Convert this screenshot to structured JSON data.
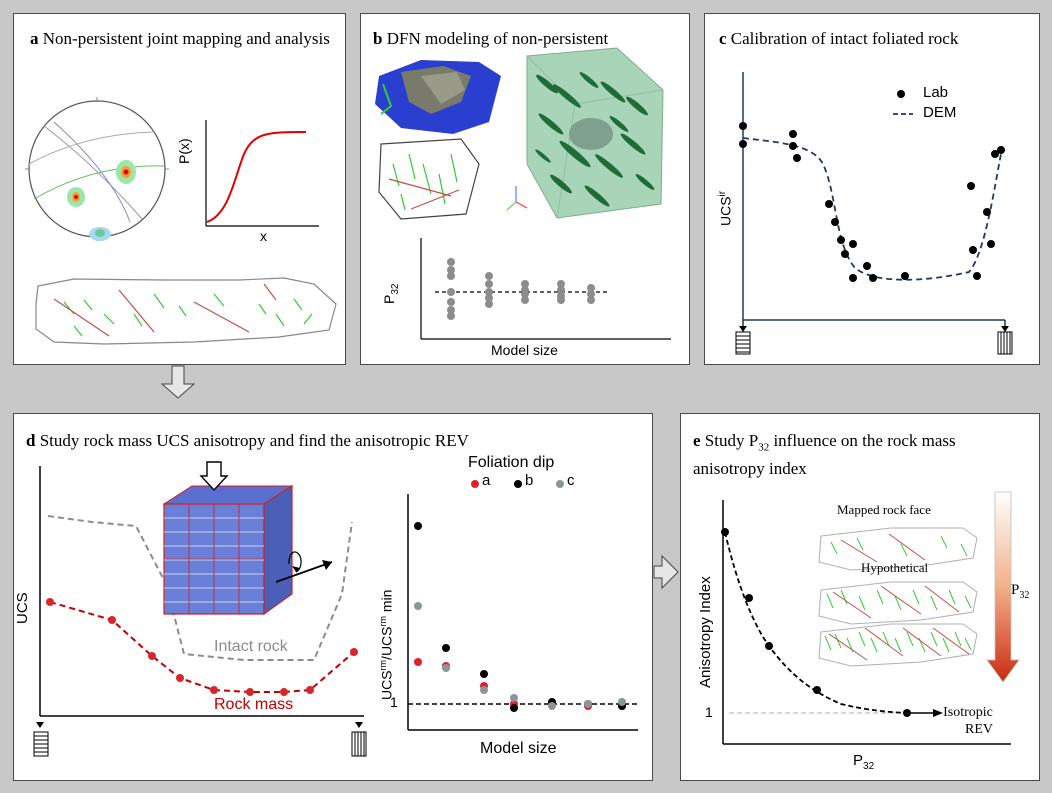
{
  "panels": {
    "a": {
      "letter": "a",
      "title": "Non-persistent joint mapping and analysis",
      "cdf": {
        "ylabel": "P(x)",
        "xlabel": "x"
      }
    },
    "b": {
      "letter": "b",
      "title": "DFN modeling of non-persistent",
      "p32_plot": {
        "ylabel_main": "P",
        "ylabel_sub": "32",
        "xlabel": "Model size"
      }
    },
    "c": {
      "letter": "c",
      "title": "Calibration of intact foliated rock",
      "ylabel_main": "UCS",
      "ylabel_sup": "ir",
      "legend": {
        "lab": "Lab",
        "dem": "DEM"
      }
    },
    "d": {
      "letter": "d",
      "title": "Study rock mass UCS anisotropy and find the anisotropic REV",
      "ucs_plot": {
        "ylabel": "UCS",
        "intact_label": "Intact rock",
        "rockmass_label": "Rock mass"
      },
      "ratio_plot": {
        "ylabel_a": "UCS",
        "ylabel_a_sup": "rm",
        "ylabel_mid": "/UCS",
        "ylabel_b_sup": "rm",
        "ylabel_end": " min",
        "one_label": "1",
        "xlabel": "Model size",
        "legend_title": "Foliation dip",
        "legend_items": [
          {
            "label": "a",
            "color": "#e0202a"
          },
          {
            "label": "b",
            "color": "#000000"
          },
          {
            "label": "c",
            "color": "#8c9696"
          }
        ]
      }
    },
    "e": {
      "letter": "e",
      "title_line1_a": "Study P",
      "title_line1_sub": "32",
      "title_line1_b": " influence on the rock mass",
      "title_line2": "anisotropy index",
      "ylabel": "Anisotropy Index",
      "xlabel_main": "P",
      "xlabel_sub": "32",
      "one_label": "1",
      "isotropic_line1": "Isotropic",
      "isotropic_line2": "REV",
      "face_mapped": "Mapped rock face",
      "face_hypothetical": "Hypothetical",
      "bar_main": "P",
      "bar_sub": "32"
    }
  },
  "colors": {
    "red": "#d6272d",
    "darkred": "#c00000",
    "navy": "#1f3864",
    "green_fracture": "#33cc33",
    "red_fracture": "#c0504d",
    "grey_curve": "#8c8c8c"
  }
}
